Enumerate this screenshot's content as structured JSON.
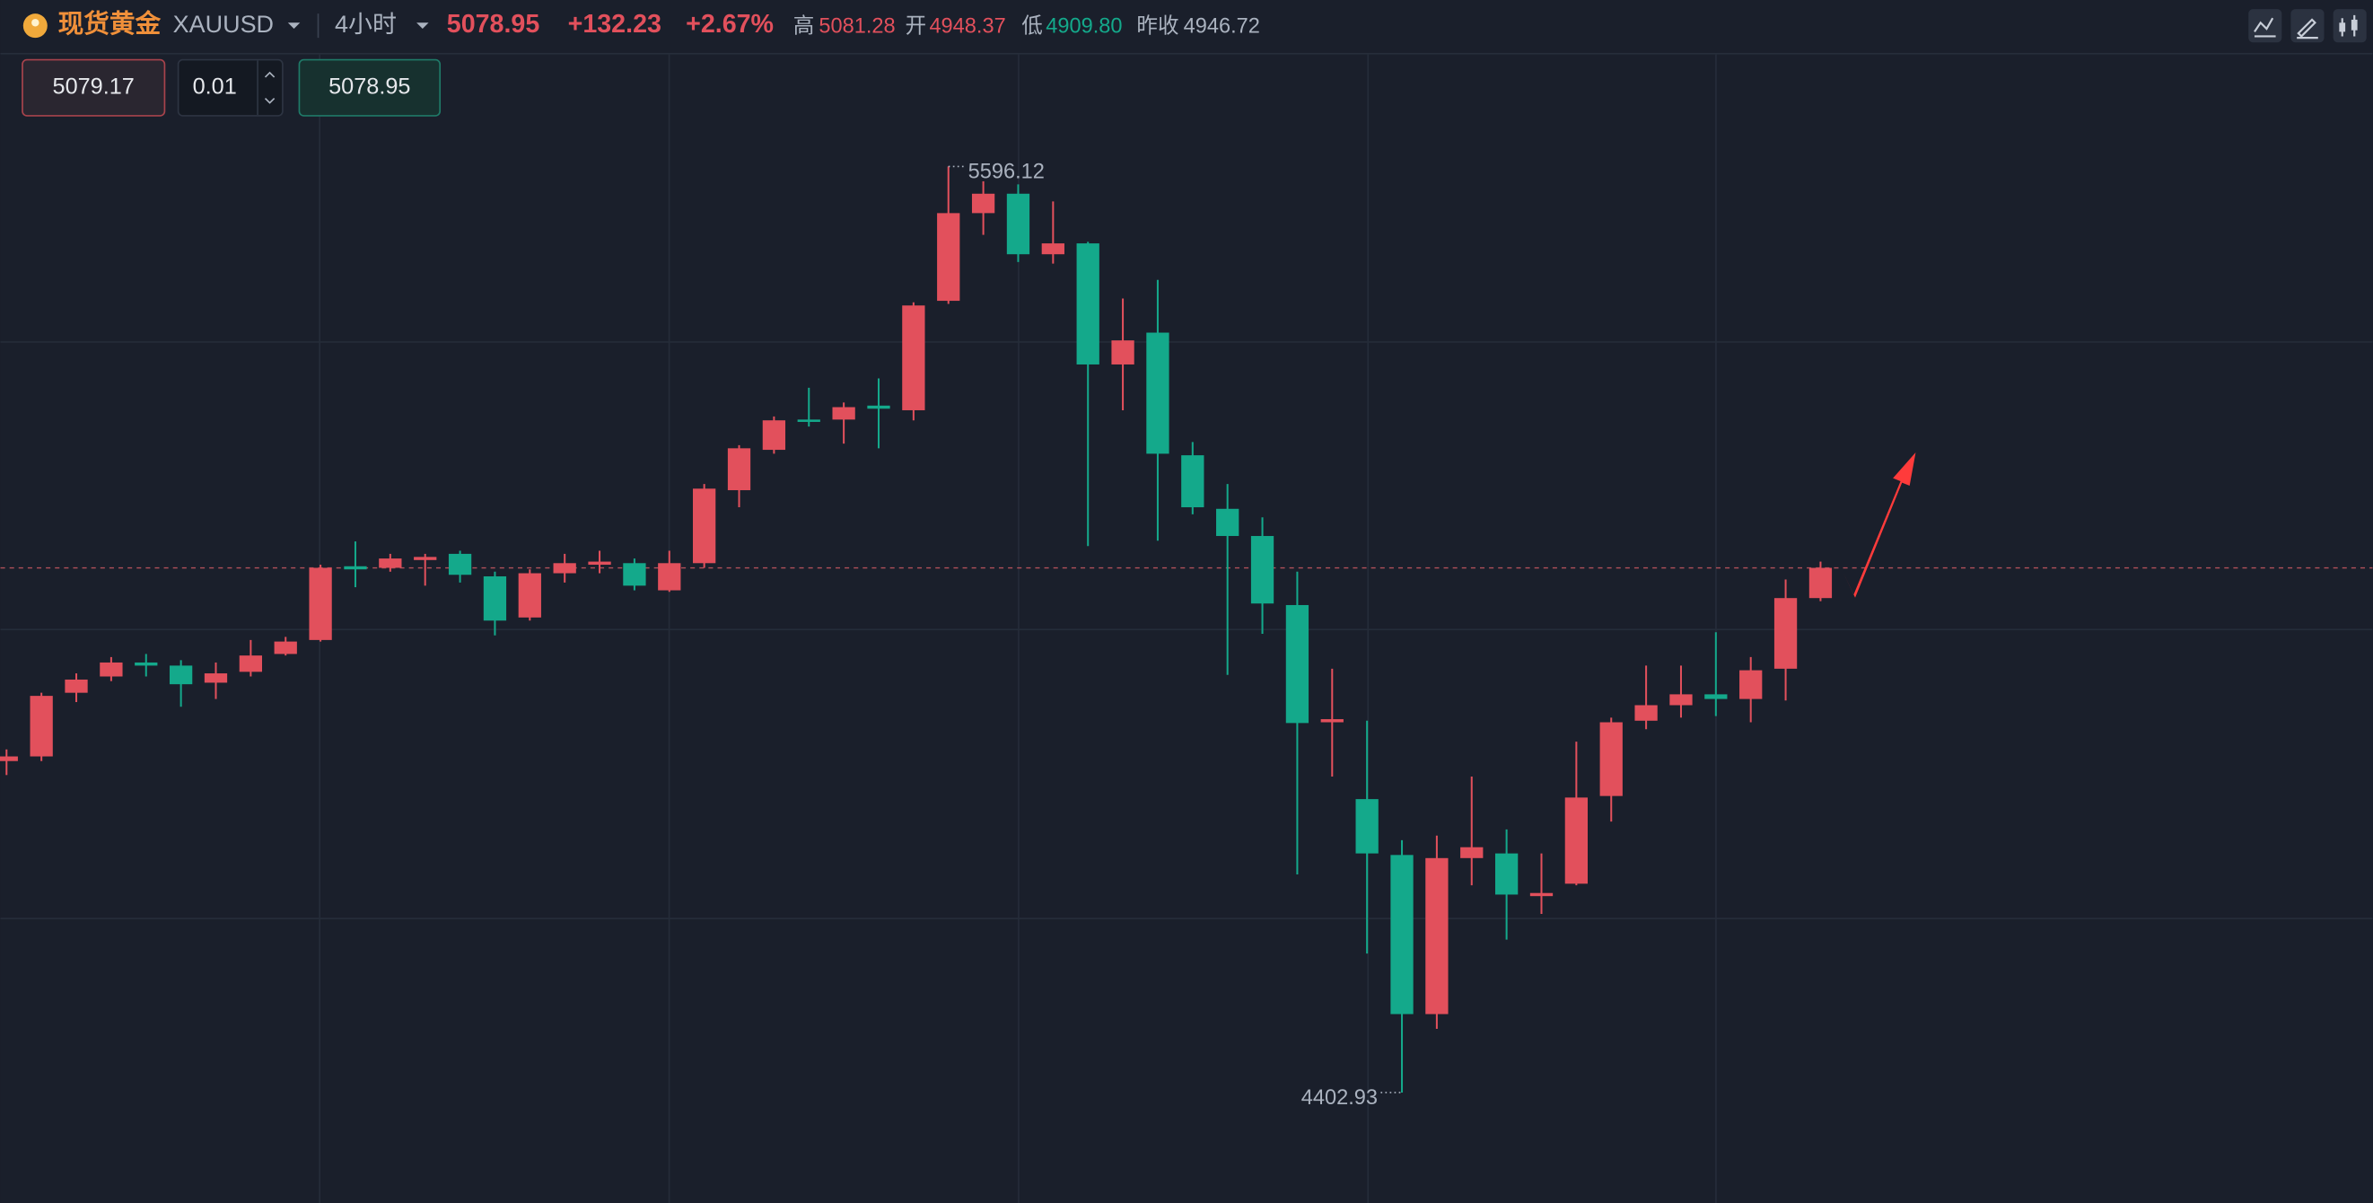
{
  "header": {
    "name": "现货黄金",
    "symbol": "XAUUSD",
    "interval": "4小时",
    "price": 5078.95,
    "change": "+132.23",
    "change_pct": "+2.67%",
    "high_label": "高",
    "high": "5081.28",
    "open_label": "开",
    "open": "4948.37",
    "low_label": "低",
    "low": "4909.80",
    "prev_close_label": "昨收",
    "prev_close": "4946.72"
  },
  "order": {
    "sell": "5079.17",
    "quantity": "0.01",
    "buy": "5078.95"
  },
  "chart_data": {
    "type": "candlestick",
    "up_color": "#e2505c",
    "down_color": "#14a98b",
    "open": [
      4830,
      4836,
      4918,
      4939,
      4957,
      4953,
      4931,
      4945,
      4968,
      4986,
      5081,
      5079,
      5089,
      5097,
      5068,
      5015,
      5072,
      5083,
      5085,
      5050,
      5085,
      5179,
      5231,
      5270,
      5270,
      5288,
      5282,
      5423,
      5536,
      5561,
      5483,
      5497,
      5341,
      5382,
      5224,
      5155,
      5120,
      5031,
      4880,
      4781,
      4709,
      4504,
      4705,
      4711,
      4656,
      4672,
      4785,
      4882,
      4902,
      4916,
      4910,
      4949,
      5040
    ],
    "high": [
      4845,
      4918,
      4943,
      4964,
      4968,
      4960,
      4957,
      4986,
      4990,
      5083,
      5113,
      5097,
      5097,
      5101,
      5074,
      5077,
      5097,
      5101,
      5091,
      5101,
      5187,
      5237,
      5274,
      5311,
      5292,
      5323,
      5421,
      5596.12,
      5577,
      5573,
      5551,
      5499,
      5426,
      5450,
      5241,
      5187,
      5144,
      5074,
      4949,
      4882,
      4728,
      4734,
      4810,
      4742,
      4711,
      4855,
      4886,
      4953,
      4953,
      4996,
      4964,
      5064,
      5087
    ],
    "low": [
      4812,
      4830,
      4906,
      4933,
      4939,
      4900,
      4910,
      4939,
      4966,
      4984,
      5054,
      5074,
      5056,
      5060,
      4992,
      5011,
      5060,
      5072,
      5050,
      5048,
      5079,
      5157,
      5226,
      5261,
      5239,
      5233,
      5269,
      5419,
      5508,
      5473,
      5471,
      5107,
      5282,
      5114,
      5148,
      4941,
      4994,
      4684,
      4810,
      4582,
      4402.93,
      4485,
      4670,
      4600,
      4633,
      4670,
      4752,
      4871,
      4886,
      4888,
      4880,
      4908,
      5036
    ],
    "close": [
      4836,
      4914,
      4935,
      4957,
      4953,
      4929,
      4943,
      4966,
      4984,
      5079,
      5077,
      5091,
      5093,
      5070,
      5011,
      5072,
      5085,
      5087,
      5056,
      5085,
      5181,
      5233,
      5269,
      5267,
      5286,
      5284,
      5417,
      5536,
      5561,
      5483,
      5497,
      5341,
      5372,
      5226,
      5157,
      5120,
      5033,
      4879,
      4884,
      4711,
      4504,
      4705,
      4719,
      4658,
      4660,
      4783,
      4880,
      4902,
      4916,
      4910,
      4947,
      5040,
      5078.95
    ],
    "max_label": "5596.12",
    "min_label": "4402.93"
  }
}
